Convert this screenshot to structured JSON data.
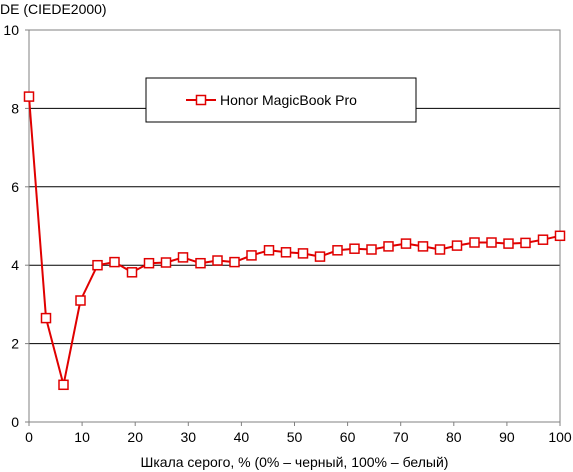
{
  "chart_data": {
    "type": "line",
    "ylabel": "DE (CIEDE2000)",
    "xlabel": "Шкала серого, % (0% – черный, 100% – белый)",
    "xlim": [
      0,
      100
    ],
    "ylim": [
      0,
      10
    ],
    "x_ticks": [
      0,
      10,
      20,
      30,
      40,
      50,
      60,
      70,
      80,
      90,
      100
    ],
    "y_ticks": [
      0,
      2,
      4,
      6,
      8,
      10
    ],
    "grid": "horizontal",
    "legend_position": "top-center",
    "series": [
      {
        "name": "Honor MagicBook Pro",
        "color": "#e00000",
        "marker": "square-open",
        "x": [
          0,
          3.2,
          6.5,
          9.7,
          12.9,
          16.1,
          19.4,
          22.6,
          25.8,
          29.0,
          32.3,
          35.5,
          38.7,
          41.9,
          45.2,
          48.4,
          51.6,
          54.8,
          58.1,
          61.3,
          64.5,
          67.7,
          71.0,
          74.2,
          77.4,
          80.6,
          83.9,
          87.1,
          90.3,
          93.5,
          96.8,
          100
        ],
        "y": [
          8.3,
          2.65,
          0.95,
          3.1,
          4.0,
          4.08,
          3.82,
          4.05,
          4.07,
          4.2,
          4.05,
          4.12,
          4.08,
          4.25,
          4.38,
          4.33,
          4.3,
          4.22,
          4.38,
          4.42,
          4.4,
          4.48,
          4.55,
          4.48,
          4.4,
          4.5,
          4.58,
          4.58,
          4.55,
          4.57,
          4.65,
          4.75
        ]
      }
    ]
  }
}
